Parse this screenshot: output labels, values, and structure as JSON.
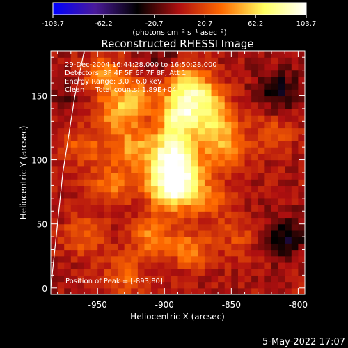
{
  "chart_data": {
    "type": "heatmap",
    "title": "Reconstructed RHESSI Image",
    "xlabel": "Heliocentric X (arcsec)",
    "ylabel": "Heliocentric Y (arcsec)",
    "xlim": [
      -985,
      -795
    ],
    "ylim": [
      -5,
      185
    ],
    "x_ticks": [
      -950,
      -900,
      -850,
      -800
    ],
    "x_tick_labels": [
      "-950",
      "-900",
      "-850",
      "-800"
    ],
    "y_ticks": [
      0,
      50,
      100,
      150
    ],
    "y_tick_labels": [
      "0",
      "50",
      "100",
      "150"
    ],
    "colorbar": {
      "range": [
        -103.7,
        103.7
      ],
      "tick_values": [
        -103.7,
        -62.2,
        -20.7,
        20.7,
        62.2,
        103.7
      ],
      "tick_labels": [
        "-103.7",
        "-62.2",
        "-20.7",
        "20.7",
        "62.2",
        "103.7"
      ],
      "unit": "(photons cm⁻² s⁻¹ asec⁻²)",
      "colors": [
        "#0000ff",
        "#4a1a9a",
        "#000000",
        "#b01010",
        "#ff6a00",
        "#ffff60",
        "#ffffff"
      ]
    },
    "info_lines": [
      "29-Dec-2004 16:44:28.000 to 16:50:28.000",
      "Detectors: 3F 4F 5F 6F 7F 8F, Att 1",
      "Energy Range: 3.0 - 6.0 keV",
      "Clean     Total counts: 1.89E+04"
    ],
    "peak_label": "Position of Peak = [-893,80]",
    "peak": {
      "x": -893,
      "y": 80
    },
    "emission_features": [
      {
        "x": -893,
        "y": 80,
        "intensity": 103.7
      },
      {
        "x": -893,
        "y": 105,
        "intensity": 90
      },
      {
        "x": -888,
        "y": 135,
        "intensity": 75
      },
      {
        "x": -885,
        "y": 160,
        "intensity": 55
      },
      {
        "x": -870,
        "y": 148,
        "intensity": 50
      },
      {
        "x": -860,
        "y": 128,
        "intensity": 45
      },
      {
        "x": -855,
        "y": 108,
        "intensity": 38
      },
      {
        "x": -935,
        "y": 135,
        "intensity": 45
      },
      {
        "x": -925,
        "y": 108,
        "intensity": 42
      },
      {
        "x": -945,
        "y": 165,
        "intensity": 40
      },
      {
        "x": -920,
        "y": 150,
        "intensity": 40
      },
      {
        "x": -940,
        "y": 80,
        "intensity": 35
      },
      {
        "x": -960,
        "y": 110,
        "intensity": 30
      },
      {
        "x": -910,
        "y": 40,
        "intensity": 38
      },
      {
        "x": -880,
        "y": 30,
        "intensity": 35
      },
      {
        "x": -960,
        "y": 40,
        "intensity": 30
      },
      {
        "x": -930,
        "y": 10,
        "intensity": 30
      },
      {
        "x": -865,
        "y": 70,
        "intensity": 30
      },
      {
        "x": -820,
        "y": 120,
        "intensity": 25
      },
      {
        "x": -845,
        "y": 40,
        "intensity": 20
      },
      {
        "x": -810,
        "y": 40,
        "intensity": -40
      },
      {
        "x": -815,
        "y": 155,
        "intensity": -35
      },
      {
        "x": -900,
        "y": 175,
        "intensity": -20
      },
      {
        "x": -975,
        "y": 150,
        "intensity": -15
      }
    ],
    "limb_curve": [
      [
        -960,
        185
      ],
      [
        -963,
        170
      ],
      [
        -967,
        150
      ],
      [
        -970,
        130
      ],
      [
        -973,
        110
      ],
      [
        -976,
        90
      ],
      [
        -978,
        70
      ],
      [
        -980,
        50
      ],
      [
        -982,
        30
      ],
      [
        -984,
        10
      ],
      [
        -985,
        0
      ]
    ]
  },
  "footer": {
    "date": "5-May-2022 17:07"
  }
}
